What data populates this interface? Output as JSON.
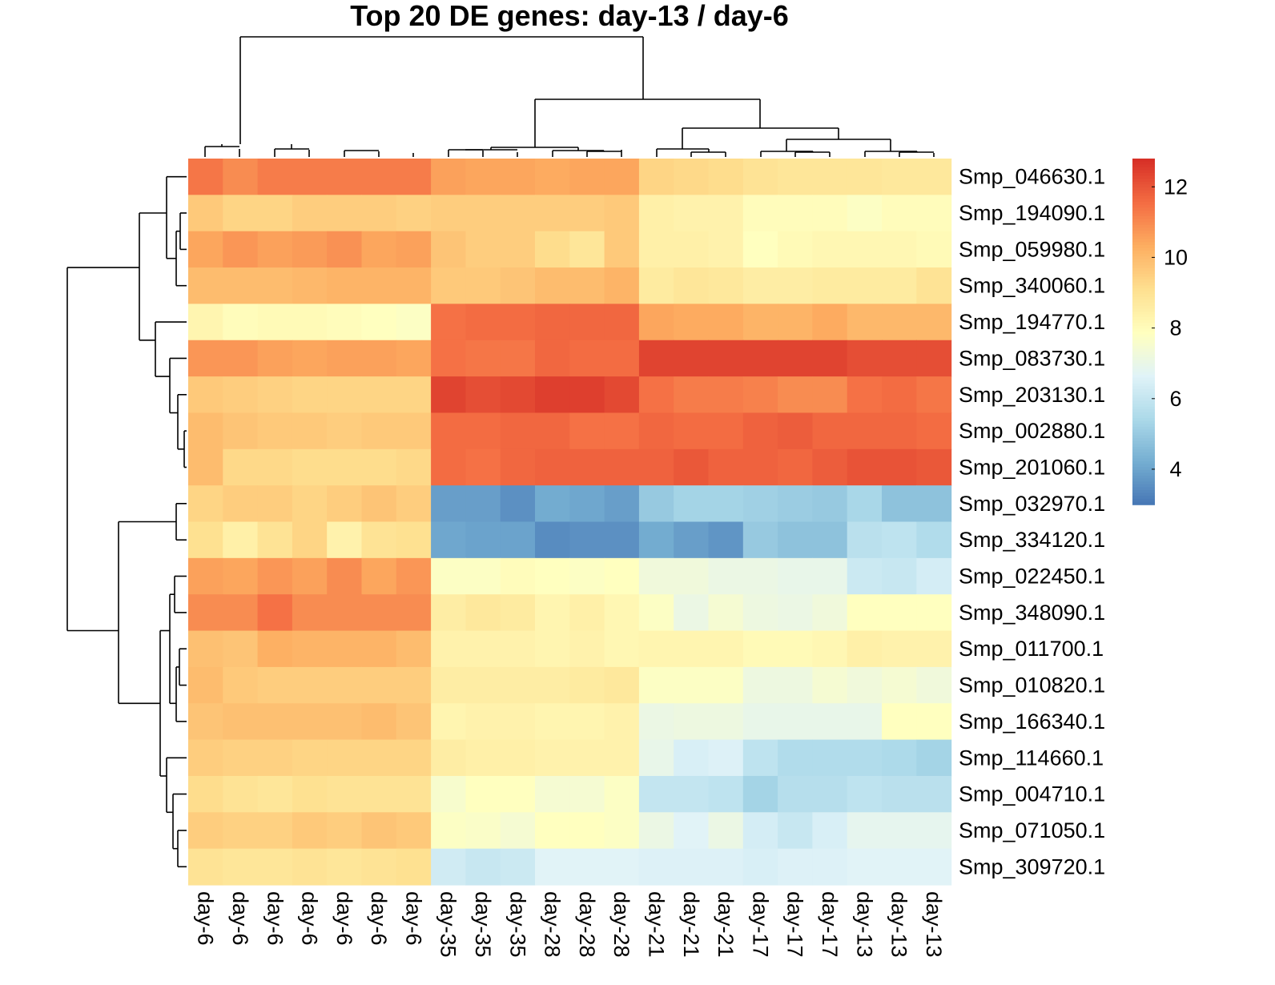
{
  "chart_data": {
    "type": "heatmap",
    "title": "Top 20 DE genes: day-13 / day-6",
    "columns": [
      "day-6",
      "day-6",
      "day-6",
      "day-6",
      "day-6",
      "day-6",
      "day-6",
      "day-35",
      "day-35",
      "day-35",
      "day-28",
      "day-28",
      "day-28",
      "day-21",
      "day-21",
      "day-21",
      "day-17",
      "day-17",
      "day-17",
      "day-13",
      "day-13",
      "day-13"
    ],
    "rows": [
      "Smp_046630.1",
      "Smp_194090.1",
      "Smp_059980.1",
      "Smp_340060.1",
      "Smp_194770.1",
      "Smp_083730.1",
      "Smp_203130.1",
      "Smp_002880.1",
      "Smp_201060.1",
      "Smp_032970.1",
      "Smp_334120.1",
      "Smp_022450.1",
      "Smp_348090.1",
      "Smp_011700.1",
      "Smp_010820.1",
      "Smp_166340.1",
      "Smp_114660.1",
      "Smp_004710.1",
      "Smp_071050.1",
      "Smp_309720.1"
    ],
    "values": [
      [
        11.4,
        11.0,
        11.3,
        11.3,
        11.3,
        11.3,
        11.3,
        10.6,
        10.5,
        10.5,
        10.4,
        10.5,
        10.5,
        9.4,
        9.3,
        9.2,
        9.0,
        8.9,
        8.9,
        8.9,
        8.8,
        8.8
      ],
      [
        9.7,
        9.4,
        9.4,
        9.6,
        9.6,
        9.6,
        9.5,
        9.6,
        9.6,
        9.6,
        9.6,
        9.6,
        9.7,
        8.5,
        8.4,
        8.4,
        8.0,
        8.0,
        8.0,
        7.8,
        8.0,
        8.0
      ],
      [
        10.5,
        10.8,
        10.6,
        10.7,
        10.9,
        10.5,
        10.6,
        9.8,
        9.6,
        9.6,
        9.2,
        8.9,
        9.7,
        8.5,
        8.5,
        8.4,
        7.9,
        8.1,
        8.2,
        8.2,
        8.2,
        8.1
      ],
      [
        10.0,
        10.0,
        10.0,
        10.1,
        10.2,
        10.2,
        10.2,
        9.7,
        9.7,
        9.8,
        10.0,
        10.0,
        10.2,
        8.7,
        8.9,
        8.8,
        8.6,
        8.6,
        8.7,
        8.7,
        8.7,
        9.0
      ],
      [
        8.3,
        8.0,
        8.1,
        8.1,
        8.0,
        7.9,
        7.8,
        11.5,
        11.6,
        11.6,
        11.7,
        11.7,
        11.7,
        10.5,
        10.4,
        10.4,
        10.2,
        10.2,
        10.4,
        10.1,
        10.1,
        10.1
      ],
      [
        10.8,
        10.8,
        10.6,
        10.5,
        10.6,
        10.6,
        10.5,
        11.5,
        11.4,
        11.4,
        11.7,
        11.6,
        11.6,
        12.4,
        12.4,
        12.4,
        12.4,
        12.4,
        12.4,
        12.2,
        12.2,
        12.2
      ],
      [
        9.7,
        9.6,
        9.5,
        9.4,
        9.4,
        9.4,
        9.4,
        12.4,
        12.2,
        12.3,
        12.5,
        12.5,
        12.3,
        11.5,
        11.3,
        11.3,
        11.2,
        11.0,
        11.0,
        11.5,
        11.6,
        11.4
      ],
      [
        10.0,
        9.8,
        9.7,
        9.7,
        9.6,
        9.7,
        9.7,
        11.6,
        11.6,
        11.7,
        11.7,
        11.5,
        11.5,
        11.7,
        11.6,
        11.6,
        11.8,
        11.9,
        11.7,
        11.7,
        11.7,
        11.6
      ],
      [
        10.0,
        9.3,
        9.3,
        9.2,
        9.2,
        9.2,
        9.3,
        11.6,
        11.5,
        11.7,
        11.8,
        11.8,
        11.8,
        11.8,
        12.0,
        11.8,
        11.8,
        11.7,
        11.9,
        12.1,
        12.1,
        12.0
      ],
      [
        9.4,
        9.6,
        9.6,
        9.4,
        9.6,
        9.8,
        9.6,
        3.9,
        3.9,
        3.6,
        4.2,
        4.1,
        3.9,
        5.0,
        5.3,
        5.3,
        5.2,
        5.1,
        5.0,
        5.4,
        4.8,
        4.8
      ],
      [
        9.1,
        8.5,
        9.0,
        9.4,
        8.4,
        9.0,
        9.1,
        4.1,
        4.0,
        4.0,
        3.5,
        3.6,
        3.6,
        4.2,
        3.9,
        3.7,
        5.0,
        4.8,
        4.8,
        5.8,
        5.9,
        5.6
      ],
      [
        10.6,
        10.5,
        10.8,
        10.6,
        11.0,
        10.5,
        10.8,
        7.8,
        7.8,
        8.0,
        7.9,
        7.8,
        7.9,
        7.3,
        7.3,
        7.1,
        7.1,
        7.0,
        7.0,
        6.2,
        6.1,
        6.4
      ],
      [
        11.0,
        11.0,
        11.5,
        11.0,
        11.0,
        11.0,
        11.0,
        8.6,
        8.8,
        8.7,
        8.3,
        8.5,
        8.2,
        7.8,
        7.1,
        7.5,
        7.2,
        7.1,
        7.3,
        7.9,
        7.9,
        7.9
      ],
      [
        9.9,
        9.8,
        10.3,
        10.2,
        10.2,
        10.2,
        10.0,
        8.4,
        8.4,
        8.4,
        8.3,
        8.4,
        8.2,
        8.3,
        8.3,
        8.3,
        8.1,
        8.1,
        8.2,
        8.5,
        8.4,
        8.4
      ],
      [
        10.0,
        9.7,
        9.6,
        9.6,
        9.6,
        9.6,
        9.6,
        8.6,
        8.6,
        8.6,
        8.6,
        8.7,
        8.8,
        7.8,
        7.8,
        7.8,
        7.2,
        7.2,
        7.5,
        7.3,
        7.5,
        7.3
      ],
      [
        9.8,
        9.9,
        9.9,
        9.9,
        9.9,
        10.0,
        9.8,
        8.3,
        8.4,
        8.4,
        8.3,
        8.3,
        8.4,
        7.1,
        7.2,
        7.2,
        7.0,
        7.0,
        7.0,
        7.0,
        7.9,
        7.9
      ],
      [
        9.6,
        9.5,
        9.5,
        9.4,
        9.4,
        9.4,
        9.4,
        8.6,
        8.5,
        8.5,
        8.4,
        8.4,
        8.4,
        7.0,
        6.5,
        6.6,
        5.9,
        5.6,
        5.6,
        5.6,
        5.5,
        5.3
      ],
      [
        9.2,
        9.0,
        8.9,
        9.1,
        9.0,
        9.0,
        9.0,
        7.6,
        7.9,
        7.9,
        7.5,
        7.5,
        7.8,
        6.0,
        6.0,
        5.9,
        5.3,
        5.7,
        5.7,
        5.9,
        5.8,
        5.8
      ],
      [
        9.6,
        9.5,
        9.5,
        9.7,
        9.6,
        9.8,
        9.7,
        7.8,
        7.7,
        7.5,
        7.9,
        7.9,
        7.8,
        7.1,
        6.7,
        7.1,
        6.4,
        6.1,
        6.5,
        6.9,
        6.9,
        6.9
      ],
      [
        9.0,
        8.9,
        8.9,
        9.0,
        8.9,
        9.0,
        9.1,
        6.3,
        6.1,
        6.2,
        6.7,
        6.7,
        6.7,
        6.6,
        6.6,
        6.6,
        6.5,
        6.6,
        6.6,
        6.7,
        6.7,
        6.7
      ]
    ],
    "color_scale": {
      "min": 3.0,
      "max": 12.8,
      "colors": [
        "#4575b4",
        "#74add1",
        "#abd9e9",
        "#e0f3f8",
        "#ffffbf",
        "#fee090",
        "#fdae61",
        "#f46d43",
        "#d73027"
      ],
      "ticks": [
        4,
        6,
        8,
        10,
        12
      ]
    },
    "legend": "right"
  }
}
